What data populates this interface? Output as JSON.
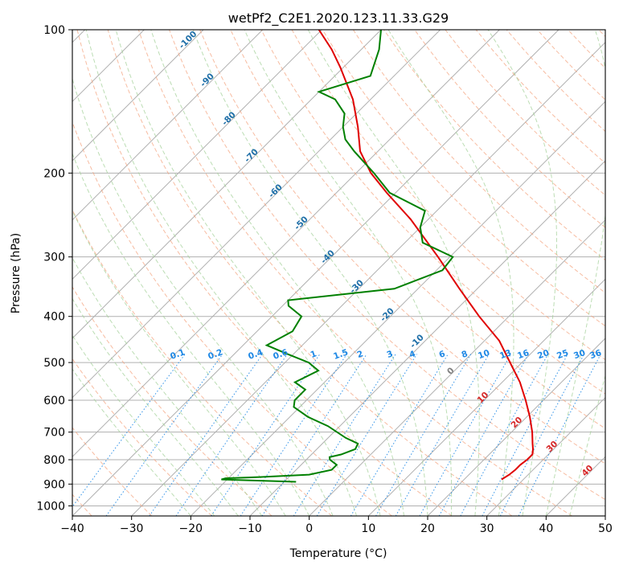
{
  "chart_data": {
    "type": "skew-t",
    "title": "wetPf2_C2E1.2020.123.11.33.G29",
    "xlabel": "Temperature (°C)",
    "ylabel": "Pressure (hPa)",
    "xlim": [
      -40,
      50
    ],
    "ylim": [
      1050,
      100
    ],
    "y_scale": "log",
    "x_ticks": [
      -40,
      -30,
      -20,
      -10,
      0,
      10,
      20,
      30,
      40,
      50
    ],
    "x_tick_labels": [
      "−40",
      "−30",
      "−20",
      "−10",
      "0",
      "10",
      "20",
      "30",
      "40",
      "50"
    ],
    "y_ticks": [
      100,
      200,
      300,
      400,
      500,
      600,
      700,
      800,
      900,
      1000
    ],
    "y_tick_labels": [
      "100",
      "200",
      "300",
      "400",
      "500",
      "600",
      "700",
      "800",
      "900",
      "1000"
    ],
    "grid": true,
    "series": [
      {
        "role": "temperature",
        "color": "#e00000",
        "points": [
          [
            880,
            26.3
          ],
          [
            860,
            26.8
          ],
          [
            840,
            27
          ],
          [
            820,
            27
          ],
          [
            800,
            27.3
          ],
          [
            780,
            27.3
          ],
          [
            760,
            26.5
          ],
          [
            740,
            25.5
          ],
          [
            700,
            23.5
          ],
          [
            650,
            20.5
          ],
          [
            600,
            17
          ],
          [
            550,
            13
          ],
          [
            500,
            8
          ],
          [
            450,
            2.5
          ],
          [
            400,
            -5
          ],
          [
            350,
            -13
          ],
          [
            300,
            -22
          ],
          [
            250,
            -33
          ],
          [
            220,
            -41.5
          ],
          [
            200,
            -47.5
          ],
          [
            180,
            -53
          ],
          [
            160,
            -57.5
          ],
          [
            140,
            -63
          ],
          [
            120,
            -70.5
          ],
          [
            110,
            -75
          ],
          [
            100,
            -80.5
          ]
        ]
      },
      {
        "role": "dewpoint",
        "color": "#008000",
        "points": [
          [
            890,
            -8
          ],
          [
            880,
            -21
          ],
          [
            875,
            -20.5
          ],
          [
            870,
            -15
          ],
          [
            860,
            -7
          ],
          [
            840,
            -4
          ],
          [
            820,
            -4
          ],
          [
            800,
            -6
          ],
          [
            790,
            -6.5
          ],
          [
            780,
            -5
          ],
          [
            760,
            -3.5
          ],
          [
            740,
            -4
          ],
          [
            720,
            -7
          ],
          [
            680,
            -12
          ],
          [
            650,
            -17
          ],
          [
            620,
            -21
          ],
          [
            600,
            -22
          ],
          [
            570,
            -22
          ],
          [
            550,
            -25
          ],
          [
            520,
            -23
          ],
          [
            500,
            -26
          ],
          [
            480,
            -31
          ],
          [
            460,
            -36
          ],
          [
            430,
            -34
          ],
          [
            400,
            -35
          ],
          [
            380,
            -39
          ],
          [
            370,
            -40
          ],
          [
            350,
            -24
          ],
          [
            320,
            -19
          ],
          [
            300,
            -19.5
          ],
          [
            280,
            -27
          ],
          [
            260,
            -30
          ],
          [
            240,
            -32
          ],
          [
            220,
            -41
          ],
          [
            200,
            -47
          ],
          [
            180,
            -54
          ],
          [
            170,
            -57.5
          ],
          [
            160,
            -60
          ],
          [
            150,
            -62
          ],
          [
            140,
            -66
          ],
          [
            135,
            -70
          ],
          [
            125,
            -64
          ],
          [
            110,
            -67
          ],
          [
            100,
            -70
          ]
        ]
      }
    ],
    "dry_adiabat_labels": [
      "-100",
      "-90",
      "-80",
      "-70",
      "-60",
      "-50",
      "-40",
      "-30",
      "-20",
      "-10"
    ],
    "mixing_ratio_labels": [
      "0.1",
      "0.2",
      "0.4",
      "0.6",
      "1",
      "1.5",
      "2",
      "3",
      "4",
      "6",
      "8",
      "10",
      "13",
      "16",
      "20",
      "25",
      "30",
      "36"
    ],
    "moist_adiabat_labels": [
      "0",
      "10",
      "20",
      "30",
      "40"
    ]
  }
}
